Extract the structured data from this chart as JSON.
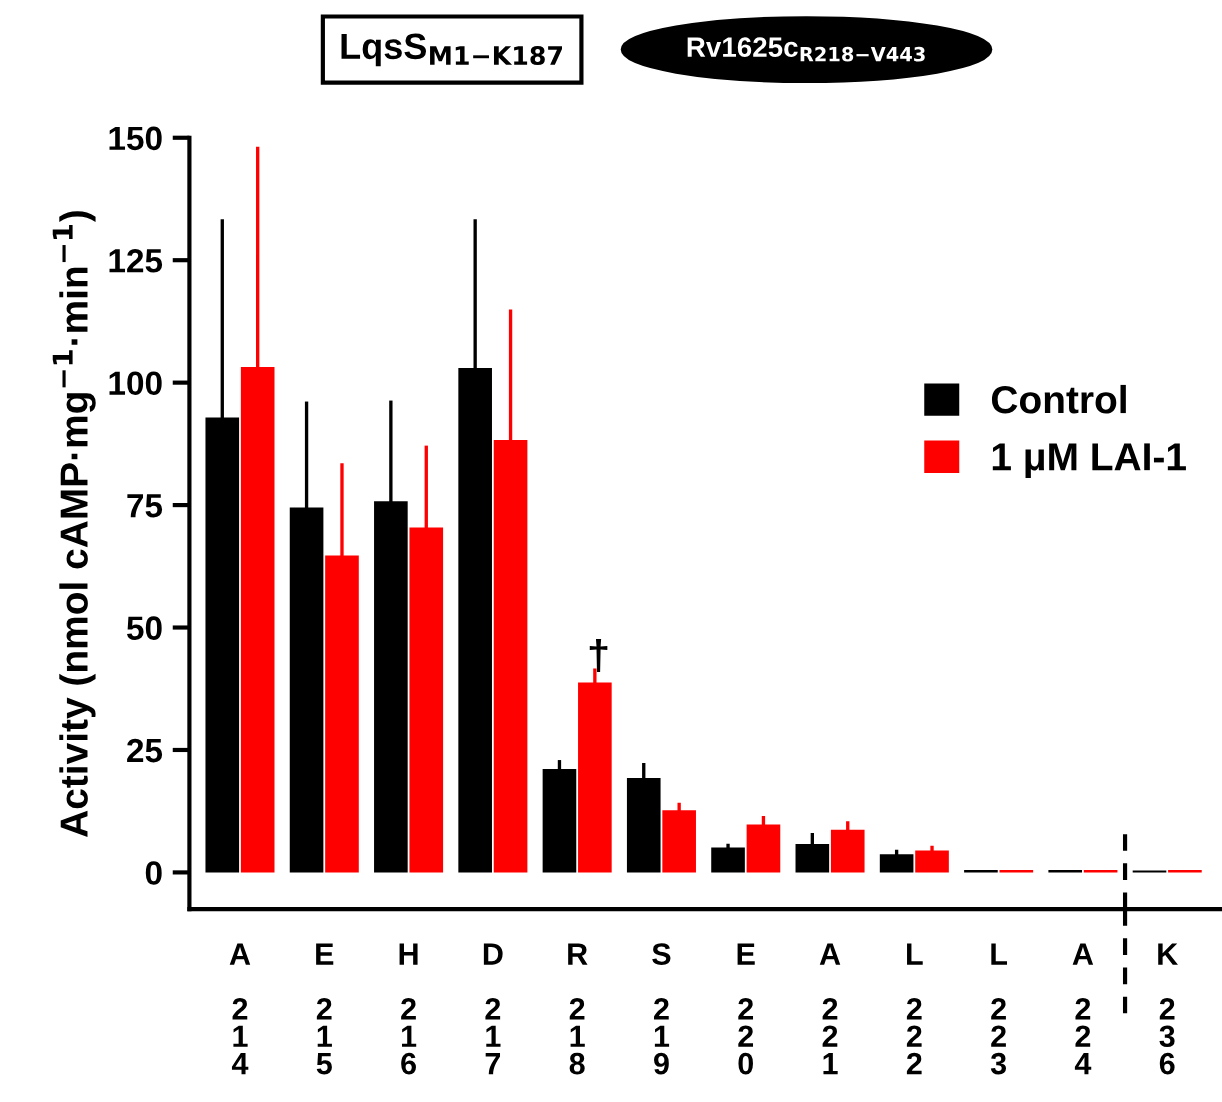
{
  "chart_data": {
    "type": "bar",
    "categories": [
      "A\n\n2\n1\n4",
      "E\n\n2\n1\n5",
      "H\n\n2\n1\n6",
      "D\n\n2\n1\n7",
      "R\n\n2\n1\n8",
      "S\n\n2\n1\n9",
      "E\n\n2\n2\n0",
      "A\n\n2\n2\n1",
      "L\n\n2\n2\n2",
      "L\n\n2\n2\n3",
      "A\n\n2\n2\n4",
      "K\n\n2\n3\n6"
    ],
    "series": [
      {
        "name": "Control",
        "color": "#000000",
        "values": [
          92.9,
          74.5,
          75.8,
          103,
          21.1,
          19.3,
          5.1,
          5.8,
          3.7,
          0.5,
          0.5,
          0.4
        ],
        "errors": [
          [
            92.9,
            133
          ],
          [
            74.5,
            95.8
          ],
          [
            75.8,
            96
          ],
          [
            103,
            133
          ],
          [
            21.1,
            22.6
          ],
          [
            19.3,
            22
          ],
          [
            5.1,
            5.5
          ],
          [
            5.8,
            7.7
          ],
          [
            3.7,
            4.3
          ],
          null,
          null,
          null
        ]
      },
      {
        "name": "1 μM LAI-1",
        "color": "#ff0000",
        "values": [
          103.2,
          64.7,
          70.4,
          88.3,
          38.8,
          12.7,
          9.8,
          8.7,
          4.5,
          0.5,
          0.5,
          0.5
        ],
        "errors": [
          [
            103.2,
            147.8
          ],
          [
            64.7,
            83.2
          ],
          [
            70.4,
            86.8
          ],
          [
            88.3,
            114.6
          ],
          [
            38.8,
            41.3
          ],
          [
            12.7,
            13.9
          ],
          [
            9.8,
            11.2
          ],
          [
            8.7,
            10.1
          ],
          [
            4.5,
            5.1
          ],
          null,
          null,
          null
        ]
      }
    ],
    "ylabel": "Activity (nmol cAMP·mg$^{−1}$·min$^{−1}$)",
    "ylim": [
      -7.5,
      150
    ],
    "yticks": [
      0,
      25,
      50,
      75,
      100,
      125,
      150
    ],
    "grid": false,
    "legend": "right",
    "annotations": [
      "†",
      "LqsS$_{M1−K187}$",
      "Rv1625c$_{R218−V443}$"
    ]
  }
}
